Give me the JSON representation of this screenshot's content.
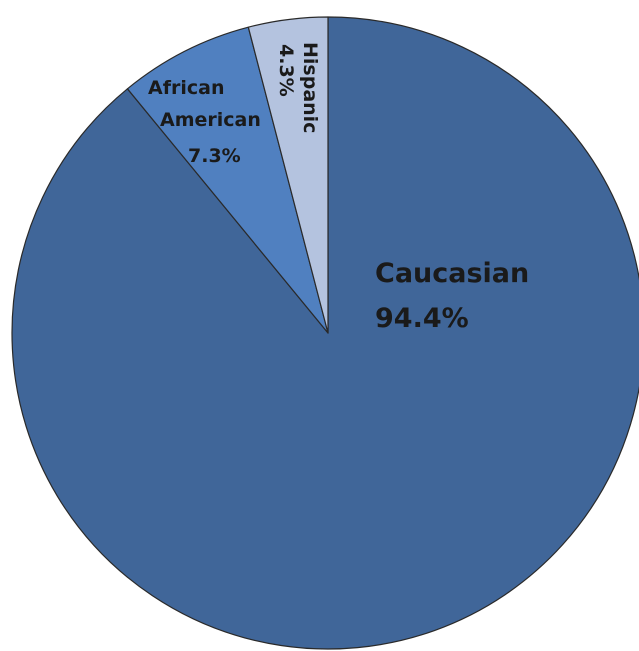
{
  "chart_data": {
    "type": "pie",
    "start_angle_deg": 0,
    "direction": "clockwise",
    "slices": [
      {
        "label": "Caucasian",
        "value": 94.4,
        "value_label": "94.4%",
        "color": "#406699"
      },
      {
        "label": "African American",
        "value": 7.3,
        "value_label": "7.3%",
        "color": "#5080C0"
      },
      {
        "label": "Hispanic",
        "value": 4.3,
        "value_label": "4.3%",
        "color": "#B4C3DF"
      }
    ],
    "legend": "none",
    "title": ""
  }
}
